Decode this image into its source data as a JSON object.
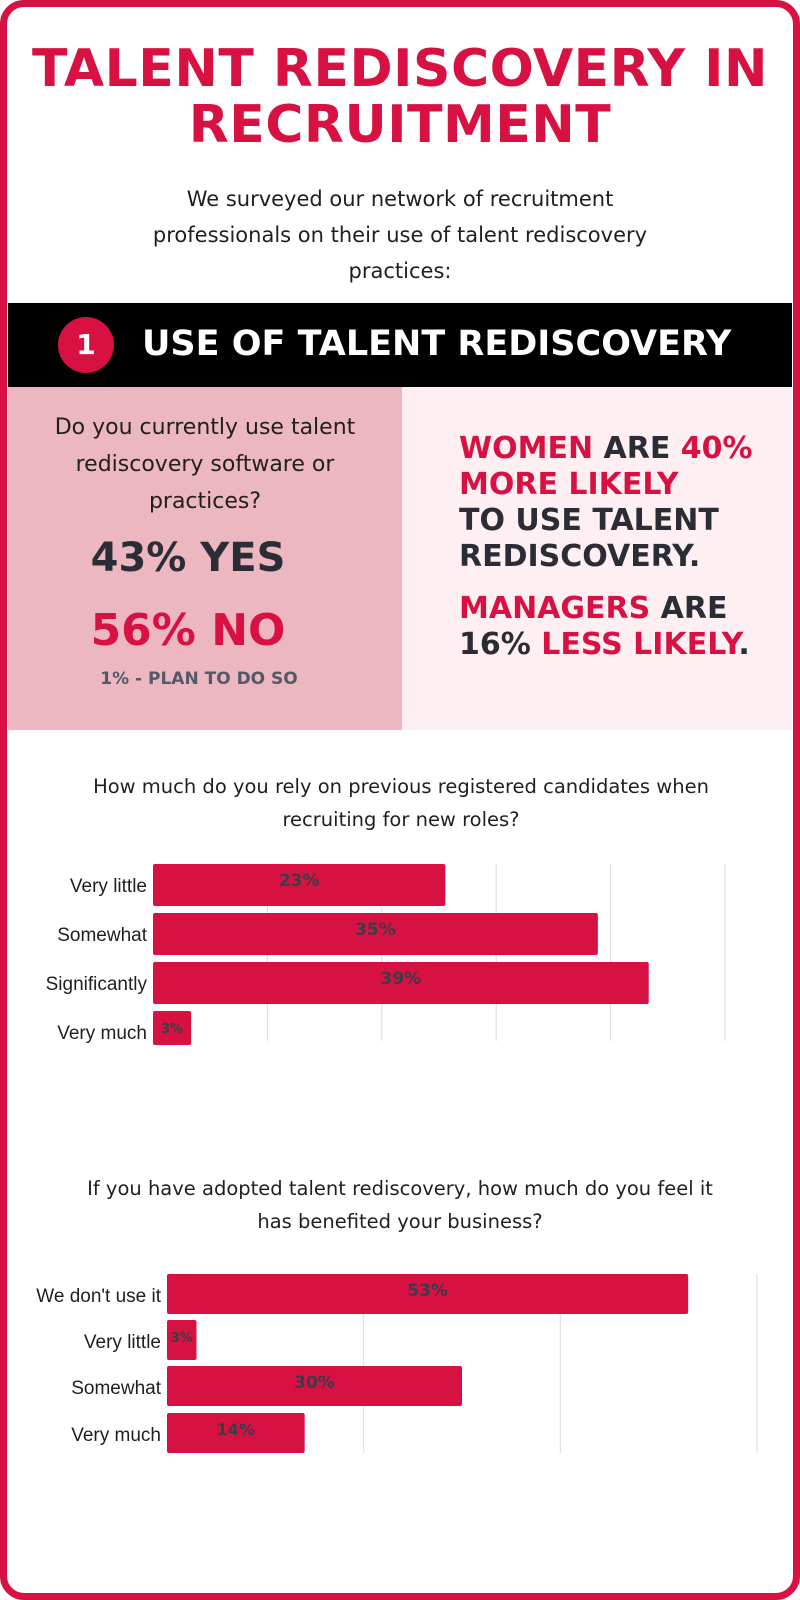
{
  "title_line1": "TALENT REDISCOVERY IN",
  "title_line2": "RECRUITMENT",
  "intro": "We surveyed our network of recruitment professionals on their use of talent rediscovery practices:",
  "section": {
    "number": "1",
    "title": "USE OF TALENT REDISCOVERY"
  },
  "left_panel": {
    "question": "Do you currently use talent rediscovery software or practices?",
    "yes": "43% YES",
    "no": "56% NO",
    "plan": "1% - PLAN TO DO SO"
  },
  "right_panel": {
    "stat1_a": "WOMEN",
    "stat1_b": " ARE ",
    "stat1_c": "40%",
    "stat1_d": "MORE LIKELY",
    "stat1_e": "TO USE TALENT REDISCOVERY.",
    "stat2_a": "MANAGERS",
    "stat2_b": " ARE ",
    "stat2_c": "16% ",
    "stat2_d": "LESS LIKELY",
    "stat2_e": "."
  },
  "colors": {
    "accent": "#d81143",
    "dark": "#2b2d36",
    "panel_left": "#edb7c1",
    "panel_right": "#fdeff2"
  },
  "chart_data": [
    {
      "type": "bar",
      "orientation": "horizontal",
      "title": "How much do you rely on previous registered candidates when recruiting for new roles?",
      "categories": [
        "Very little",
        "Somewhat",
        "Significantly",
        "Very much"
      ],
      "values": [
        23,
        35,
        39,
        3
      ],
      "value_labels": [
        "23%",
        "35%",
        "39%",
        "3%"
      ],
      "xlim": [
        0,
        45
      ],
      "grid": true
    },
    {
      "type": "bar",
      "orientation": "horizontal",
      "title": "If you have adopted talent rediscovery, how much do you feel it has benefited your business?",
      "categories": [
        "We don't use it",
        "Very little",
        "Somewhat",
        "Very much"
      ],
      "values": [
        53,
        3,
        30,
        14
      ],
      "value_labels": [
        "53%",
        "3%",
        "30%",
        "14%"
      ],
      "xlim": [
        0,
        60
      ],
      "grid": true
    }
  ]
}
